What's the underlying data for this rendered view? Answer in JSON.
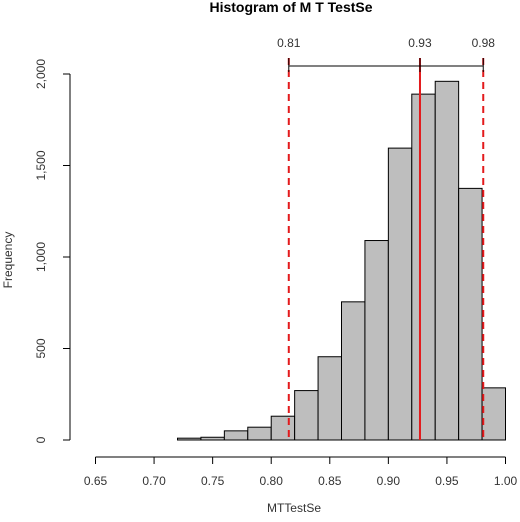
{
  "chart_data": {
    "type": "bar",
    "title": "Histogram of M T TestSe",
    "xlabel": "MTTestSe",
    "ylabel": "Frequency",
    "bin_width": 0.02,
    "xlim": [
      0.65,
      1.0
    ],
    "ylim": [
      0,
      2000
    ],
    "x_ticks": [
      {
        "value": 0.65,
        "label": "0.65"
      },
      {
        "value": 0.7,
        "label": "0.70"
      },
      {
        "value": 0.75,
        "label": "0.75"
      },
      {
        "value": 0.8,
        "label": "0.80"
      },
      {
        "value": 0.85,
        "label": "0.85"
      },
      {
        "value": 0.9,
        "label": "0.90"
      },
      {
        "value": 0.95,
        "label": "0.95"
      },
      {
        "value": 1.0,
        "label": "1.00"
      }
    ],
    "y_ticks": [
      {
        "value": 0,
        "label": "0"
      },
      {
        "value": 500,
        "label": "500"
      },
      {
        "value": 1000,
        "label": "1,000"
      },
      {
        "value": 1500,
        "label": "1,500"
      },
      {
        "value": 2000,
        "label": "2,000"
      }
    ],
    "bins": [
      {
        "start": 0.64,
        "end": 0.66,
        "count": 0
      },
      {
        "start": 0.66,
        "end": 0.68,
        "count": 0
      },
      {
        "start": 0.68,
        "end": 0.7,
        "count": 0
      },
      {
        "start": 0.7,
        "end": 0.72,
        "count": 0
      },
      {
        "start": 0.72,
        "end": 0.74,
        "count": 10
      },
      {
        "start": 0.74,
        "end": 0.76,
        "count": 15
      },
      {
        "start": 0.76,
        "end": 0.78,
        "count": 50
      },
      {
        "start": 0.78,
        "end": 0.8,
        "count": 70
      },
      {
        "start": 0.8,
        "end": 0.82,
        "count": 130
      },
      {
        "start": 0.82,
        "end": 0.84,
        "count": 270
      },
      {
        "start": 0.84,
        "end": 0.86,
        "count": 455
      },
      {
        "start": 0.86,
        "end": 0.88,
        "count": 755
      },
      {
        "start": 0.88,
        "end": 0.9,
        "count": 1090
      },
      {
        "start": 0.9,
        "end": 0.92,
        "count": 1595
      },
      {
        "start": 0.92,
        "end": 0.94,
        "count": 1890
      },
      {
        "start": 0.94,
        "end": 0.96,
        "count": 1960
      },
      {
        "start": 0.96,
        "end": 0.98,
        "count": 1375
      },
      {
        "start": 0.98,
        "end": 1.0,
        "count": 285
      }
    ],
    "bar_color": "#bebebe",
    "bar_edge_color": "#000000",
    "interval": {
      "lower": {
        "value": 0.815,
        "label": "0.81"
      },
      "median": {
        "value": 0.927,
        "label": "0.93"
      },
      "upper": {
        "value": 0.981,
        "label": "0.98"
      },
      "dashed_color": "#e31a1c",
      "solid_color": "#e31a1c"
    },
    "grid": false,
    "legend": "none"
  }
}
